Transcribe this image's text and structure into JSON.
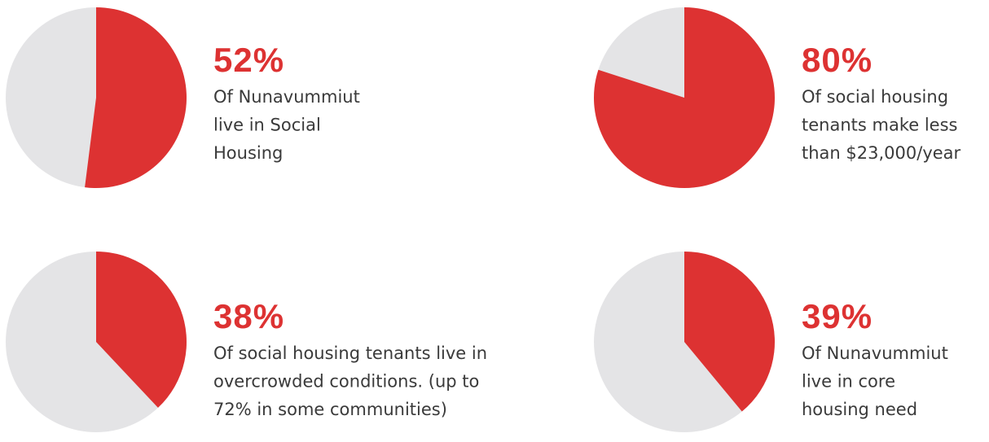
{
  "chart_data": [
    {
      "type": "pie",
      "values": [
        52
      ],
      "value_labels": [
        "52%"
      ],
      "color": "#dd3232",
      "rest_color": "#e4e4e6",
      "text": [
        "Of Nunavummiut",
        "live in Social",
        "Housing"
      ]
    },
    {
      "type": "pie",
      "values": [
        80
      ],
      "value_labels": [
        "80%"
      ],
      "color": "#dd3232",
      "rest_color": "#e4e4e6",
      "text": [
        "Of social housing",
        "tenants make less",
        "than $23,000/year"
      ]
    },
    {
      "type": "pie",
      "values": [
        38
      ],
      "value_labels": [
        "38%"
      ],
      "color": "#dd3232",
      "rest_color": "#e4e4e6",
      "text": [
        "Of social housing tenants live in",
        "overcrowded conditions. (up to",
        "72% in some communities)"
      ]
    },
    {
      "type": "pie",
      "values": [
        39
      ],
      "value_labels": [
        "39%"
      ],
      "color": "#dd3232",
      "rest_color": "#e4e4e6",
      "text": [
        "Of Nunavummiut",
        "live in core",
        "housing need"
      ]
    }
  ]
}
